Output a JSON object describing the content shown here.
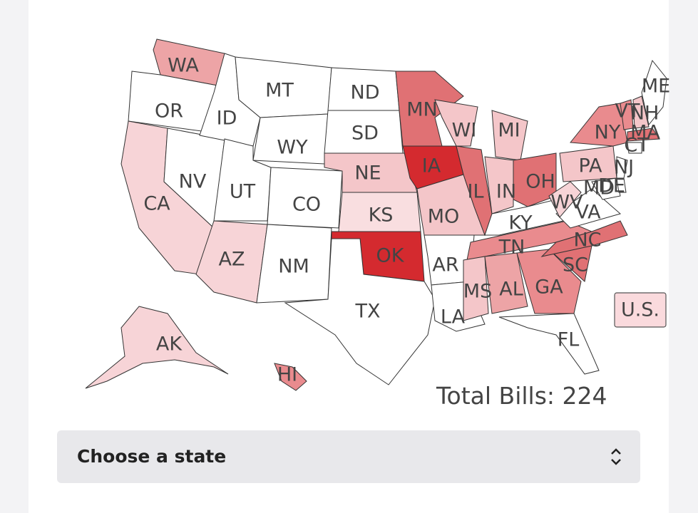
{
  "map": {
    "states": [
      {
        "label": "WA",
        "color": "#eda4a6"
      },
      {
        "label": "OR",
        "color": "#ffffff"
      },
      {
        "label": "CA",
        "color": "#f7d4d7"
      },
      {
        "label": "NV",
        "color": "#ffffff"
      },
      {
        "label": "ID",
        "color": "#ffffff"
      },
      {
        "label": "MT",
        "color": "#ffffff"
      },
      {
        "label": "WY",
        "color": "#ffffff"
      },
      {
        "label": "UT",
        "color": "#ffffff"
      },
      {
        "label": "CO",
        "color": "#ffffff"
      },
      {
        "label": "AZ",
        "color": "#f7d4d7"
      },
      {
        "label": "NM",
        "color": "#ffffff"
      },
      {
        "label": "ND",
        "color": "#ffffff"
      },
      {
        "label": "SD",
        "color": "#ffffff"
      },
      {
        "label": "NE",
        "color": "#f4c6c9"
      },
      {
        "label": "KS",
        "color": "#f9dee0"
      },
      {
        "label": "OK",
        "color": "#d42a2f"
      },
      {
        "label": "TX",
        "color": "#ffffff"
      },
      {
        "label": "MN",
        "color": "#e07174"
      },
      {
        "label": "IA",
        "color": "#d42a2f"
      },
      {
        "label": "MO",
        "color": "#f4c6c9"
      },
      {
        "label": "AR",
        "color": "#ffffff"
      },
      {
        "label": "LA",
        "color": "#ffffff"
      },
      {
        "label": "WI",
        "color": "#f4c6c9"
      },
      {
        "label": "IL",
        "color": "#e07174"
      },
      {
        "label": "MI",
        "color": "#f4c6c9"
      },
      {
        "label": "IN",
        "color": "#f4c6c9"
      },
      {
        "label": "OH",
        "color": "#e07174"
      },
      {
        "label": "KY",
        "color": "#ffffff"
      },
      {
        "label": "TN",
        "color": "#e98b8e"
      },
      {
        "label": "MS",
        "color": "#f4c6c9"
      },
      {
        "label": "AL",
        "color": "#eda4a6"
      },
      {
        "label": "GA",
        "color": "#e98b8e"
      },
      {
        "label": "FL",
        "color": "#ffffff"
      },
      {
        "label": "SC",
        "color": "#e07174"
      },
      {
        "label": "NC",
        "color": "#e07174"
      },
      {
        "label": "VA",
        "color": "#ffffff"
      },
      {
        "label": "WV",
        "color": "#f7d4d7"
      },
      {
        "label": "PA",
        "color": "#f4c6c9"
      },
      {
        "label": "NY",
        "color": "#e98b8e"
      },
      {
        "label": "MD",
        "color": "#ffffff"
      },
      {
        "label": "DE",
        "color": "#ffffff"
      },
      {
        "label": "NJ",
        "color": "#ffffff"
      },
      {
        "label": "CT",
        "color": "#ffffff"
      },
      {
        "label": "MA",
        "color": "#e07174"
      },
      {
        "label": "VT",
        "color": "#e98b8e"
      },
      {
        "label": "NH",
        "color": "#f4c6c9"
      },
      {
        "label": "ME",
        "color": "#ffffff"
      },
      {
        "label": "AK",
        "color": "#f7d4d7"
      },
      {
        "label": "HI",
        "color": "#e98b8e"
      }
    ],
    "us_button": {
      "label": "U.S.",
      "color": "#fadadd"
    },
    "total_label": "Total Bills:",
    "total_value": 224
  },
  "select": {
    "placeholder": "Choose a state"
  }
}
